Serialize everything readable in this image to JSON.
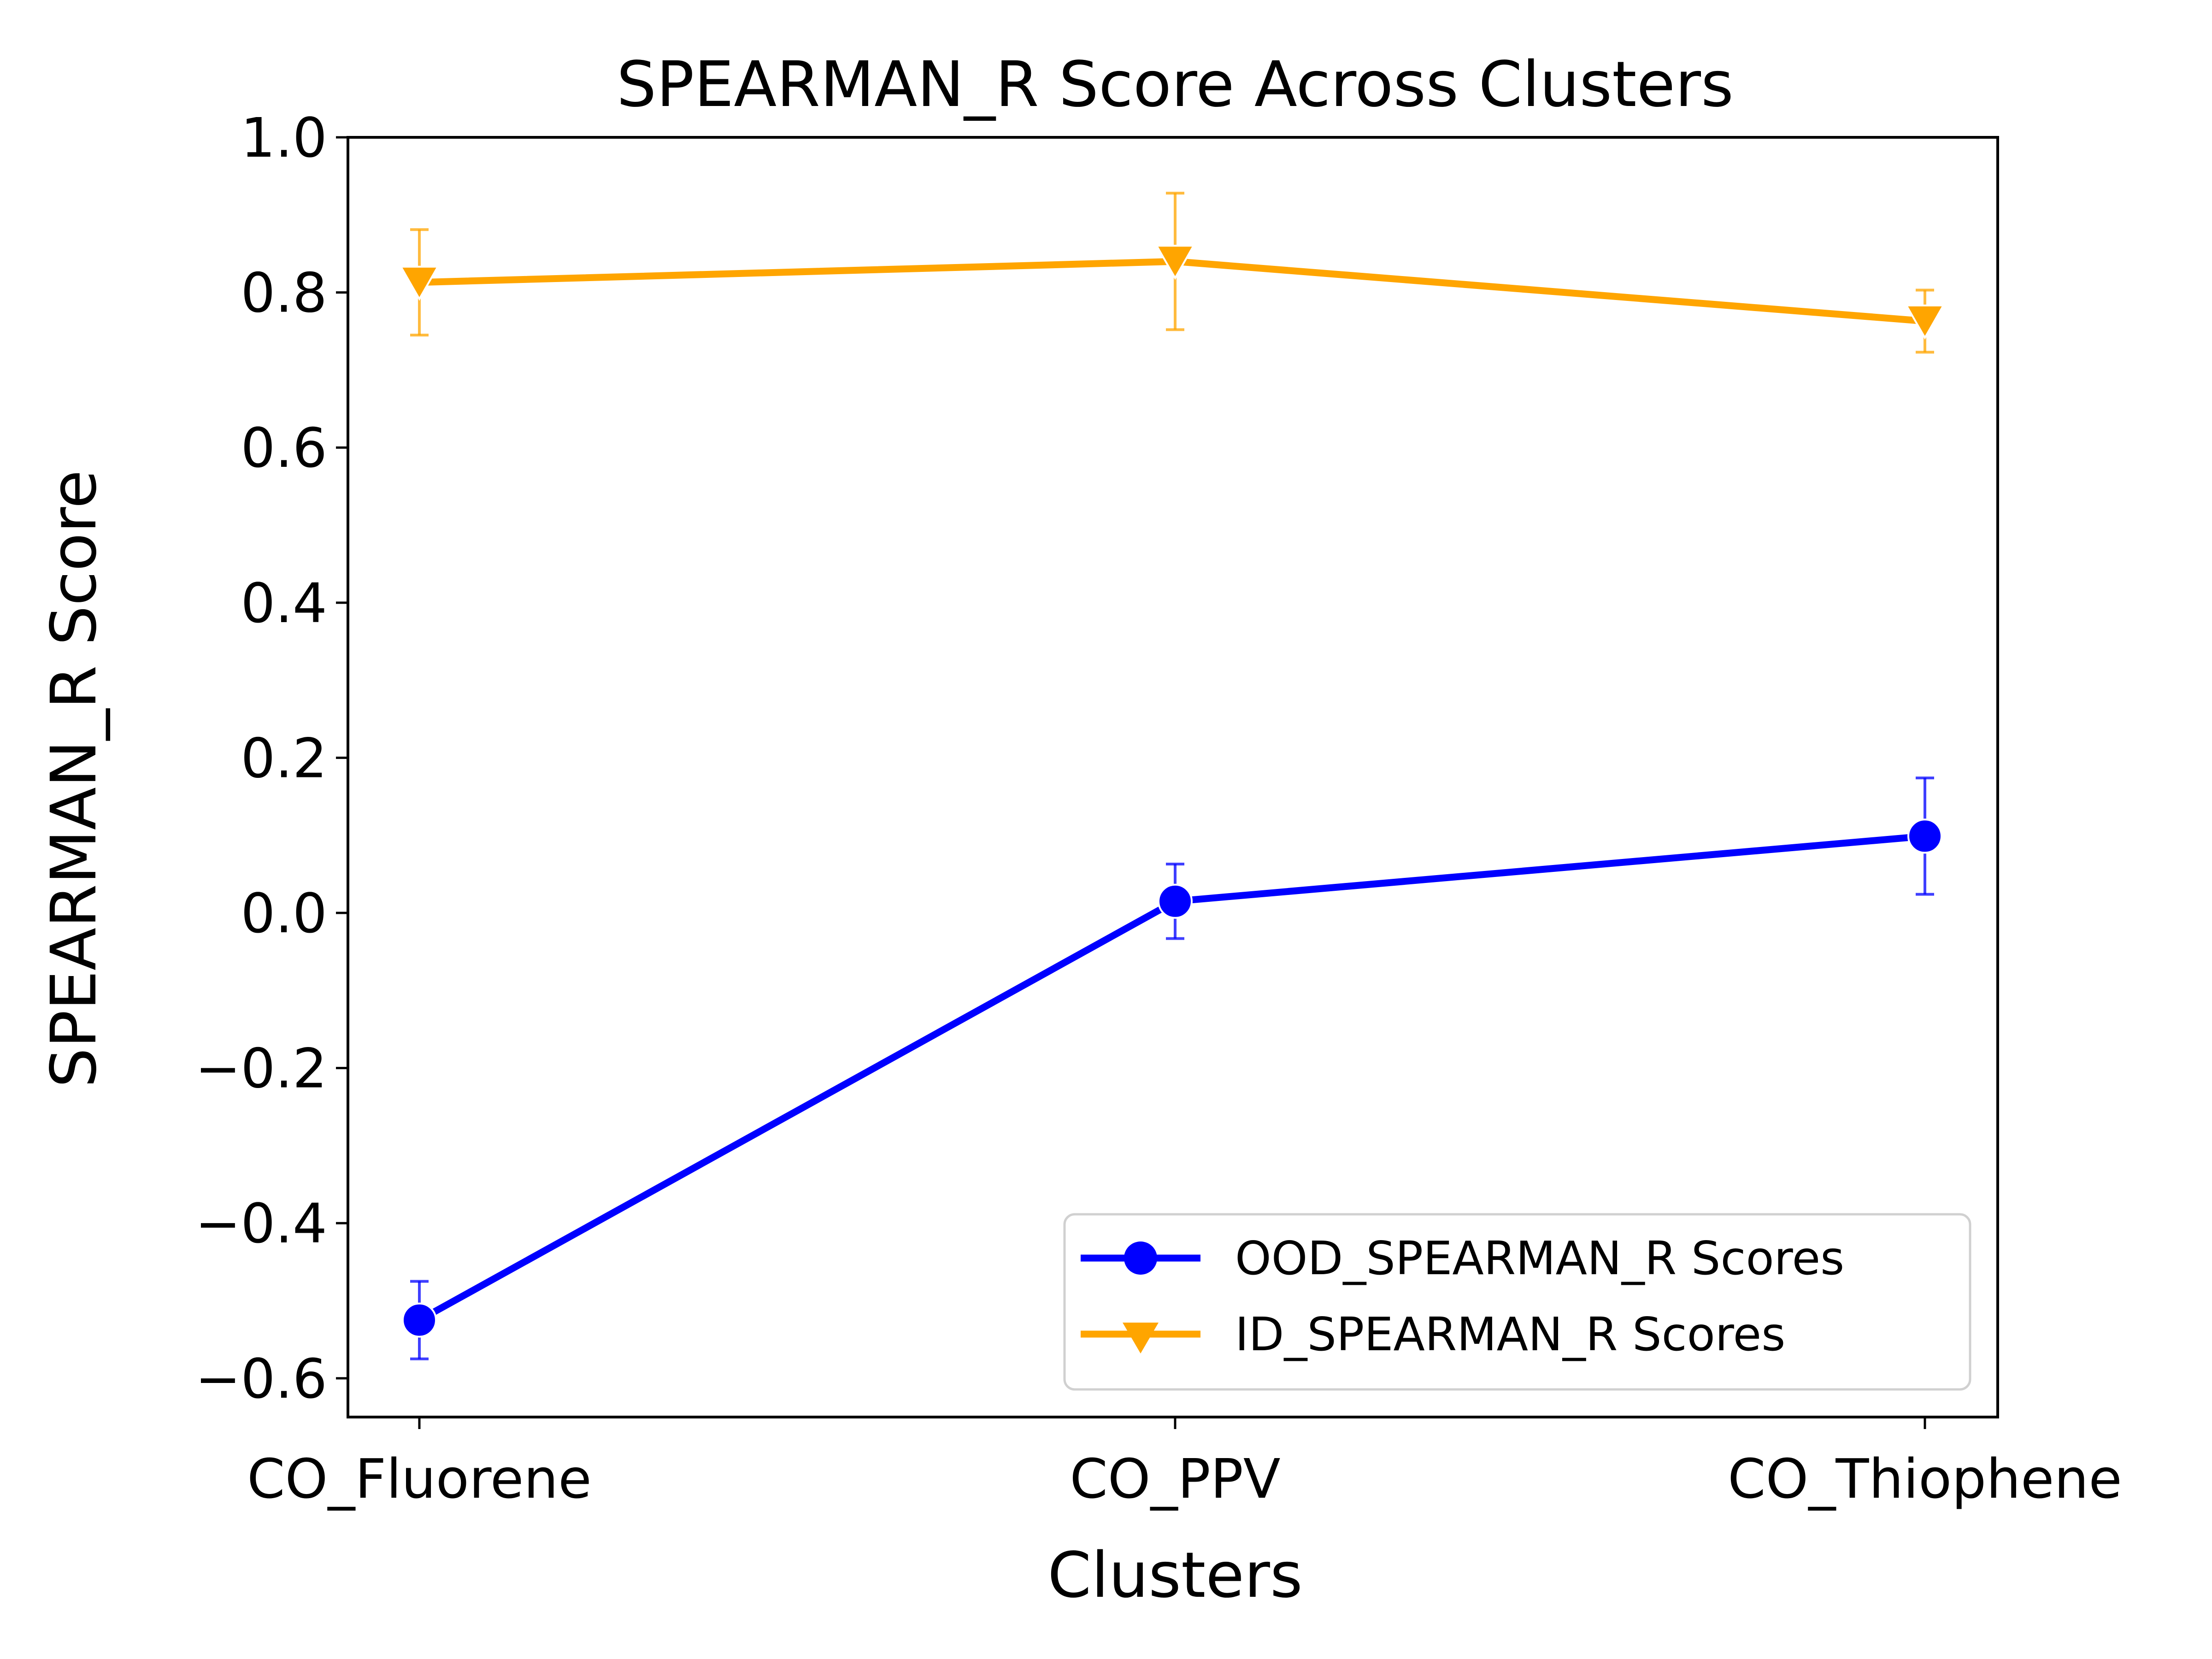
{
  "chart_data": {
    "type": "line",
    "title": "SPEARMAN_R Score Across Clusters",
    "xlabel": "Clusters",
    "ylabel": "SPEARMAN_R Score",
    "categories": [
      "CO_Fluorene",
      "CO_PPV",
      "CO_Thiophene"
    ],
    "ylim": [
      -0.65,
      1.0
    ],
    "yticks": [
      1.0,
      0.8,
      0.6,
      0.4,
      0.2,
      0.0,
      -0.2,
      -0.4,
      -0.6
    ],
    "ytick_labels": [
      "1.0",
      "0.8",
      "0.6",
      "0.4",
      "0.2",
      "0.0",
      "−0.2",
      "−0.4",
      "−0.6"
    ],
    "grid": false,
    "legend_position": "lower-right",
    "series": [
      {
        "name": "OOD_SPEARMAN_R Scores",
        "color": "#0000ff",
        "marker": "circle",
        "values": [
          -0.525,
          0.015,
          0.099
        ],
        "error": [
          0.05,
          0.048,
          0.075
        ]
      },
      {
        "name": "ID_SPEARMAN_R Scores",
        "color": "#ffa500",
        "marker": "triangle-down",
        "values": [
          0.813,
          0.84,
          0.763
        ],
        "error": [
          0.068,
          0.088,
          0.04
        ]
      }
    ]
  }
}
